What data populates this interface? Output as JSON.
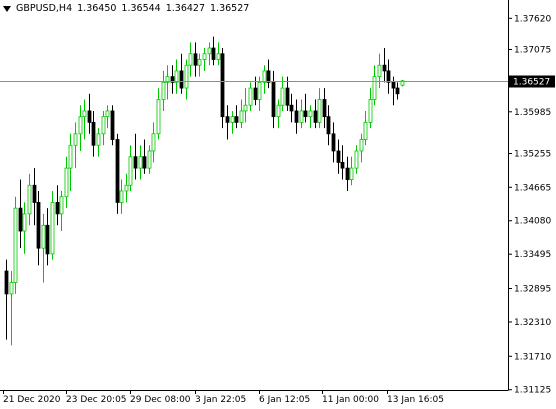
{
  "header": {
    "menu_icon": "triangle-down-icon",
    "symbol_timeframe": "GBPUSD,H4",
    "open": "1.36450",
    "high": "1.36544",
    "low": "1.36427",
    "close": "1.36527"
  },
  "colors": {
    "background": "#ffffff",
    "axis": "#000000",
    "bull_candle": "#00c800",
    "bear_candle": "#000000",
    "bid_line": "#7a9a88",
    "price_label_bg": "#000000",
    "price_label_text": "#ffffff"
  },
  "price_axis": {
    "ticks": [
      "1.37620",
      "1.37075",
      "1.36530",
      "1.35985",
      "1.35255",
      "1.34665",
      "1.34080",
      "1.33495",
      "1.32895",
      "1.32310",
      "1.31710",
      "1.31125"
    ],
    "current_price_label": "1.36527"
  },
  "time_axis": {
    "ticks": [
      "21 Dec 2020",
      "23 Dec 20:05",
      "29 Dec 08:00",
      "3 Jan 22:05",
      "6 Jan 12:05",
      "11 Jan 00:00",
      "13 Jan 16:05"
    ]
  },
  "chart_data": {
    "type": "candlestick",
    "symbol": "GBPUSD",
    "timeframe": "H4",
    "ylim": [
      1.3112,
      1.3794
    ],
    "bid": 1.36527,
    "bull_color": "#00c800",
    "bear_color": "#000000",
    "candles": [
      [
        1.332,
        1.334,
        1.32,
        1.328
      ],
      [
        1.328,
        1.332,
        1.319,
        1.33
      ],
      [
        1.33,
        1.345,
        1.328,
        1.343
      ],
      [
        1.343,
        1.348,
        1.336,
        1.339
      ],
      [
        1.339,
        1.344,
        1.335,
        1.342
      ],
      [
        1.342,
        1.349,
        1.34,
        1.347
      ],
      [
        1.347,
        1.35,
        1.34,
        1.344
      ],
      [
        1.344,
        1.346,
        1.333,
        1.336
      ],
      [
        1.336,
        1.342,
        1.33,
        1.34
      ],
      [
        1.34,
        1.343,
        1.333,
        1.335
      ],
      [
        1.335,
        1.346,
        1.334,
        1.344
      ],
      [
        1.344,
        1.347,
        1.34,
        1.342
      ],
      [
        1.342,
        1.346,
        1.339,
        1.345
      ],
      [
        1.345,
        1.352,
        1.343,
        1.35
      ],
      [
        1.35,
        1.356,
        1.346,
        1.354
      ],
      [
        1.354,
        1.358,
        1.35,
        1.356
      ],
      [
        1.356,
        1.361,
        1.353,
        1.359
      ],
      [
        1.359,
        1.362,
        1.355,
        1.36
      ],
      [
        1.36,
        1.363,
        1.356,
        1.358
      ],
      [
        1.358,
        1.36,
        1.352,
        1.354
      ],
      [
        1.354,
        1.357,
        1.352,
        1.356
      ],
      [
        1.356,
        1.36,
        1.354,
        1.359
      ],
      [
        1.359,
        1.361,
        1.357,
        1.36
      ],
      [
        1.36,
        1.361,
        1.354,
        1.355
      ],
      [
        1.355,
        1.356,
        1.342,
        1.344
      ],
      [
        1.344,
        1.348,
        1.342,
        1.346
      ],
      [
        1.346,
        1.349,
        1.344,
        1.347
      ],
      [
        1.347,
        1.354,
        1.346,
        1.352
      ],
      [
        1.352,
        1.356,
        1.348,
        1.35
      ],
      [
        1.35,
        1.354,
        1.348,
        1.352
      ],
      [
        1.352,
        1.355,
        1.349,
        1.35
      ],
      [
        1.35,
        1.354,
        1.349,
        1.353
      ],
      [
        1.353,
        1.358,
        1.351,
        1.356
      ],
      [
        1.356,
        1.364,
        1.355,
        1.362
      ],
      [
        1.362,
        1.367,
        1.36,
        1.365
      ],
      [
        1.365,
        1.368,
        1.362,
        1.366
      ],
      [
        1.366,
        1.368,
        1.363,
        1.365
      ],
      [
        1.365,
        1.369,
        1.363,
        1.367
      ],
      [
        1.367,
        1.37,
        1.363,
        1.364
      ],
      [
        1.364,
        1.369,
        1.362,
        1.368
      ],
      [
        1.368,
        1.372,
        1.366,
        1.37
      ],
      [
        1.37,
        1.372,
        1.366,
        1.368
      ],
      [
        1.368,
        1.37,
        1.366,
        1.369
      ],
      [
        1.369,
        1.371,
        1.367,
        1.37
      ],
      [
        1.37,
        1.372,
        1.368,
        1.371
      ],
      [
        1.371,
        1.373,
        1.368,
        1.369
      ],
      [
        1.369,
        1.372,
        1.368,
        1.37
      ],
      [
        1.37,
        1.371,
        1.357,
        1.359
      ],
      [
        1.359,
        1.361,
        1.355,
        1.358
      ],
      [
        1.358,
        1.36,
        1.356,
        1.359
      ],
      [
        1.359,
        1.361,
        1.357,
        1.358
      ],
      [
        1.358,
        1.362,
        1.357,
        1.36
      ],
      [
        1.36,
        1.364,
        1.358,
        1.361
      ],
      [
        1.361,
        1.365,
        1.36,
        1.364
      ],
      [
        1.364,
        1.366,
        1.361,
        1.362
      ],
      [
        1.362,
        1.366,
        1.36,
        1.365
      ],
      [
        1.365,
        1.368,
        1.363,
        1.367
      ],
      [
        1.367,
        1.369,
        1.364,
        1.365
      ],
      [
        1.365,
        1.367,
        1.357,
        1.359
      ],
      [
        1.359,
        1.362,
        1.357,
        1.361
      ],
      [
        1.361,
        1.366,
        1.36,
        1.364
      ],
      [
        1.364,
        1.366,
        1.36,
        1.361
      ],
      [
        1.361,
        1.363,
        1.358,
        1.36
      ],
      [
        1.36,
        1.362,
        1.356,
        1.358
      ],
      [
        1.358,
        1.362,
        1.357,
        1.36
      ],
      [
        1.36,
        1.363,
        1.358,
        1.359
      ],
      [
        1.359,
        1.361,
        1.357,
        1.36
      ],
      [
        1.36,
        1.362,
        1.357,
        1.358
      ],
      [
        1.358,
        1.364,
        1.357,
        1.362
      ],
      [
        1.362,
        1.364,
        1.357,
        1.359
      ],
      [
        1.359,
        1.361,
        1.354,
        1.356
      ],
      [
        1.356,
        1.358,
        1.351,
        1.353
      ],
      [
        1.353,
        1.355,
        1.349,
        1.351
      ],
      [
        1.351,
        1.354,
        1.348,
        1.35
      ],
      [
        1.35,
        1.352,
        1.346,
        1.348
      ],
      [
        1.348,
        1.352,
        1.347,
        1.35
      ],
      [
        1.35,
        1.354,
        1.349,
        1.353
      ],
      [
        1.353,
        1.356,
        1.351,
        1.355
      ],
      [
        1.355,
        1.36,
        1.354,
        1.358
      ],
      [
        1.358,
        1.364,
        1.357,
        1.362
      ],
      [
        1.362,
        1.368,
        1.361,
        1.366
      ],
      [
        1.366,
        1.37,
        1.364,
        1.368
      ],
      [
        1.368,
        1.371,
        1.365,
        1.367
      ],
      [
        1.367,
        1.369,
        1.363,
        1.365
      ],
      [
        1.365,
        1.366,
        1.361,
        1.364
      ],
      [
        1.364,
        1.365,
        1.362,
        1.363
      ],
      [
        1.3645,
        1.36544,
        1.36427,
        1.36527
      ]
    ]
  }
}
